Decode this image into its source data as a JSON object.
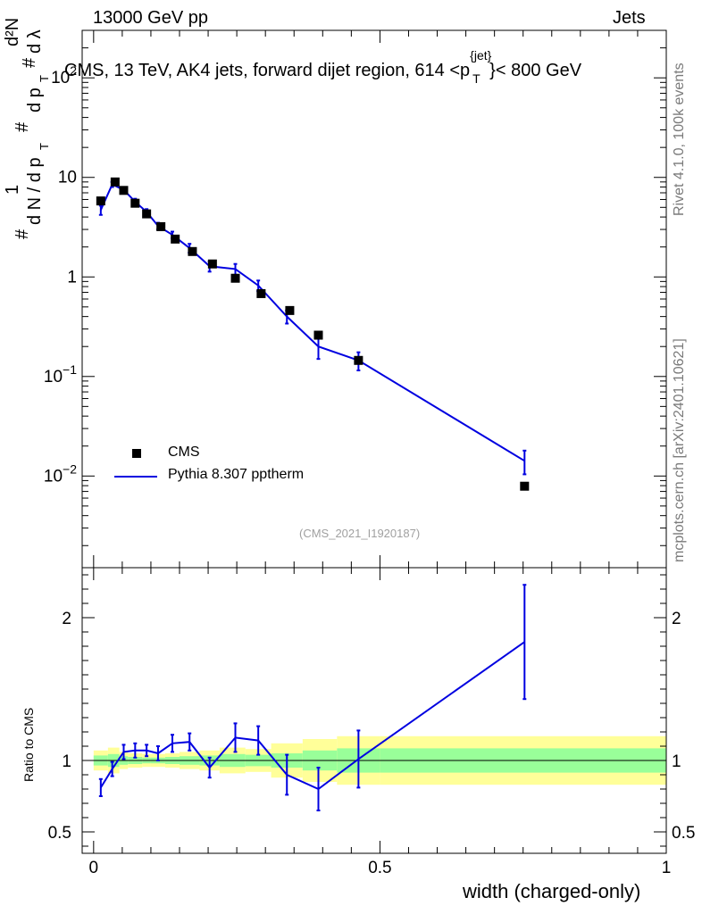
{
  "header": {
    "left": "13000 GeV pp",
    "right": "Jets",
    "side_top": "Rivet 4.1.0,  100k events",
    "side_bottom": "mcplots.cern.ch [arXiv:2401.10621]",
    "analysis_id": "(CMS_2021_I1920187)"
  },
  "chart_data": [
    {
      "type": "scatter",
      "title": "CMS, 13 TeV, AK4 jets, forward dijet region, 614 <p_T^{jet}< 800 GeV",
      "title_parts": {
        "main": "CMS, 13 TeV, AK4 jets, forward dijet region, 614 <p",
        "sup": "{jet}",
        "sub": "T",
        "tail": "}< 800 GeV"
      },
      "ylabel_parts": {
        "hash": "#",
        "one": "1",
        "dN": "d N / d p",
        "T": "T",
        "hash2": "#",
        "d2N": "d²N",
        "dpT": "d p",
        "T2": "T",
        "hash3": "#",
        "dl": "d λ"
      },
      "yscale": "log",
      "xlim": [
        -0.02,
        1.0
      ],
      "ylim": [
        0.0012,
        300
      ],
      "yticks": [
        {
          "value": 0.01,
          "base": "10",
          "exp": "−2"
        },
        {
          "value": 0.1,
          "base": "10",
          "exp": "−1"
        },
        {
          "value": 1,
          "base": "1",
          "exp": ""
        },
        {
          "value": 10,
          "base": "10",
          "exp": ""
        },
        {
          "value": 100,
          "base": "10",
          "exp": "2"
        }
      ],
      "legend": {
        "placement": "lower-left",
        "entries": [
          "CMS",
          "Pythia 8.307 pptherm"
        ]
      },
      "series": [
        {
          "name": "CMS",
          "marker": "square",
          "color": "#000000",
          "x": [
            0.0125,
            0.0375,
            0.0525,
            0.0725,
            0.0925,
            0.1175,
            0.1425,
            0.1725,
            0.2075,
            0.2475,
            0.2925,
            0.3425,
            0.3925,
            0.4625,
            0.7525
          ],
          "y": [
            5.8,
            9.0,
            7.4,
            5.5,
            4.3,
            3.2,
            2.4,
            1.8,
            1.35,
            0.97,
            0.68,
            0.46,
            0.26,
            0.145,
            0.0079
          ]
        },
        {
          "name": "Pythia 8.307 pptherm",
          "marker": "line",
          "color": "#0000e0",
          "x": [
            0.0125,
            0.0325,
            0.0525,
            0.0725,
            0.0925,
            0.1125,
            0.1375,
            0.1675,
            0.2025,
            0.2475,
            0.2875,
            0.3375,
            0.3925,
            0.4625,
            0.7525
          ],
          "y": [
            4.7,
            8.5,
            7.5,
            5.7,
            4.5,
            3.25,
            2.65,
            1.95,
            1.28,
            1.2,
            0.82,
            0.4,
            0.2,
            0.145,
            0.0142
          ],
          "err": [
            0.5,
            0.5,
            0.5,
            0.4,
            0.3,
            0.25,
            0.2,
            0.2,
            0.15,
            0.15,
            0.1,
            0.06,
            0.05,
            0.03,
            0.0038
          ]
        }
      ]
    },
    {
      "type": "line",
      "ylabel": "Ratio to CMS",
      "xlabel": "width (charged-only)",
      "xlim": [
        -0.02,
        1.0
      ],
      "ylim": [
        0.35,
        2.35
      ],
      "xticks": [
        "0",
        "0.5",
        "1"
      ],
      "xtick_values": [
        0,
        0.5,
        1
      ],
      "yticks": [
        "0.5",
        "1",
        "2"
      ],
      "ytick_values": [
        0.5,
        1,
        2
      ],
      "bands": {
        "edges": [
          0,
          0.025,
          0.045,
          0.06,
          0.085,
          0.1,
          0.125,
          0.15,
          0.185,
          0.22,
          0.265,
          0.31,
          0.365,
          0.425,
          0.5,
          1.0
        ],
        "inner_half": [
          0.035,
          0.045,
          0.03,
          0.025,
          0.02,
          0.02,
          0.025,
          0.03,
          0.035,
          0.045,
          0.04,
          0.05,
          0.07,
          0.085,
          0.085
        ],
        "outer_half": [
          0.07,
          0.09,
          0.06,
          0.05,
          0.045,
          0.045,
          0.05,
          0.06,
          0.07,
          0.09,
          0.08,
          0.12,
          0.15,
          0.17,
          0.17
        ],
        "inner_color": "#99ff99",
        "outer_color": "#ffff99"
      },
      "series": [
        {
          "name": "Pythia 8.307 pptherm / CMS",
          "color": "#0000e0",
          "x": [
            0.0125,
            0.0325,
            0.0525,
            0.0725,
            0.0925,
            0.1125,
            0.1375,
            0.1675,
            0.2025,
            0.2475,
            0.2875,
            0.3375,
            0.3925,
            0.4625,
            0.7525
          ],
          "y": [
            0.81,
            0.94,
            1.06,
            1.07,
            1.07,
            1.05,
            1.12,
            1.13,
            0.95,
            1.16,
            1.14,
            0.9,
            0.8,
            1.01,
            1.83
          ],
          "err": [
            0.06,
            0.05,
            0.05,
            0.05,
            0.04,
            0.05,
            0.06,
            0.06,
            0.07,
            0.1,
            0.1,
            0.14,
            0.15,
            0.2,
            0.4
          ]
        }
      ]
    }
  ]
}
